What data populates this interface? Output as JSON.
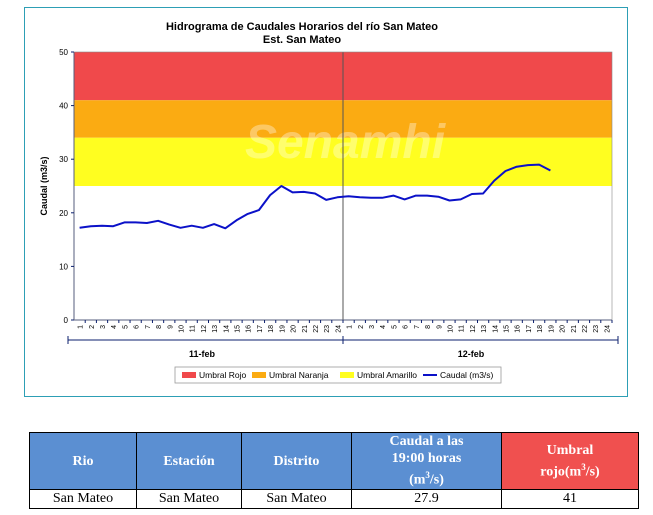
{
  "chart": {
    "title": "Hidrograma de Caudales Horarios del río San Mateo",
    "subtitle": "Est. San Mateo",
    "watermark": "Senamhi",
    "ylabel": "Caudal  (m3/s)",
    "colors": {
      "rojo": "#f0494b",
      "naranja": "#fbab12",
      "amarillo": "#fffe20",
      "line": "#0b11c8",
      "axis": "#0b1f6d"
    }
  },
  "chart_data": {
    "type": "line",
    "ylim": [
      0,
      50
    ],
    "yticks": [
      0,
      10,
      20,
      30,
      40,
      50
    ],
    "hour_labels": [
      "1",
      "2",
      "3",
      "4",
      "5",
      "6",
      "7",
      "8",
      "9",
      "10",
      "11",
      "12",
      "13",
      "14",
      "15",
      "16",
      "17",
      "18",
      "19",
      "20",
      "21",
      "22",
      "23",
      "24"
    ],
    "day_labels": [
      "11-feb",
      "12-feb"
    ],
    "thresholds": [
      {
        "name": "Umbral Rojo",
        "from": 41,
        "to": 50
      },
      {
        "name": "Umbral Naranja",
        "from": 34,
        "to": 41
      },
      {
        "name": "Umbral Amarillo",
        "from": 25,
        "to": 34
      }
    ],
    "series": [
      {
        "name": "Caudal (m3/s)",
        "values": [
          17.2,
          17.5,
          17.6,
          17.5,
          18.2,
          18.2,
          18.1,
          18.5,
          17.8,
          17.2,
          17.6,
          17.2,
          17.9,
          17.1,
          18.6,
          19.8,
          20.5,
          23.3,
          25.0,
          23.8,
          23.9,
          23.6,
          22.4,
          22.9,
          23.1,
          22.9,
          22.8,
          22.8,
          23.2,
          22.5,
          23.2,
          23.2,
          23.0,
          22.3,
          22.5,
          23.5,
          23.6,
          26.0,
          27.8,
          28.6,
          28.9,
          29.0,
          27.9
        ]
      }
    ]
  },
  "legend": [
    {
      "label": "Umbral Rojo",
      "key": "rojo"
    },
    {
      "label": "Umbral Naranja",
      "key": "naranja"
    },
    {
      "label": "Umbral Amarillo",
      "key": "amarillo"
    },
    {
      "label": "Caudal (m3/s)",
      "key": "line"
    }
  ],
  "table": {
    "headers": {
      "rio": "Rio",
      "estacion": "Estación",
      "distrito": "Distrito",
      "caudal_a": "Caudal a las",
      "caudal_b": "19:00 horas",
      "caudal_unit_pre": "(m",
      "caudal_unit_sup": "3",
      "caudal_unit_post": "/s)",
      "umbral_a": "Umbral",
      "umbral_b_pre": "rojo(m",
      "umbral_b_sup": "3",
      "umbral_b_post": "/s)"
    },
    "row": {
      "rio": "San Mateo",
      "estacion": "San Mateo",
      "distrito": "San Mateo",
      "caudal": "27.9",
      "umbral": "41"
    }
  }
}
